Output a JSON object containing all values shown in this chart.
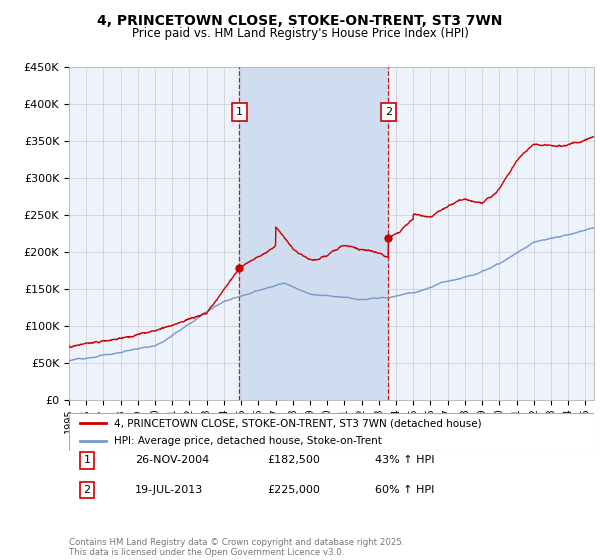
{
  "title": "4, PRINCETOWN CLOSE, STOKE-ON-TRENT, ST3 7WN",
  "subtitle": "Price paid vs. HM Land Registry's House Price Index (HPI)",
  "red_label": "4, PRINCETOWN CLOSE, STOKE-ON-TRENT, ST3 7WN (detached house)",
  "blue_label": "HPI: Average price, detached house, Stoke-on-Trent",
  "sale1_date": "26-NOV-2004",
  "sale1_price": 182500,
  "sale1_pct": "43%",
  "sale2_date": "19-JUL-2013",
  "sale2_price": 225000,
  "sale2_pct": "60%",
  "copyright": "Contains HM Land Registry data © Crown copyright and database right 2025.\nThis data is licensed under the Open Government Licence v3.0.",
  "ylim": [
    0,
    450000
  ],
  "yticks": [
    0,
    50000,
    100000,
    150000,
    200000,
    250000,
    300000,
    350000,
    400000,
    450000
  ],
  "xlim_start": 1995.0,
  "xlim_end": 2025.5,
  "sale1_x": 2004.9,
  "sale2_x": 2013.55,
  "bg_color": "#eef2fa",
  "red_color": "#cc0000",
  "blue_color": "#7799cc",
  "span_color": "#d0dcf0"
}
